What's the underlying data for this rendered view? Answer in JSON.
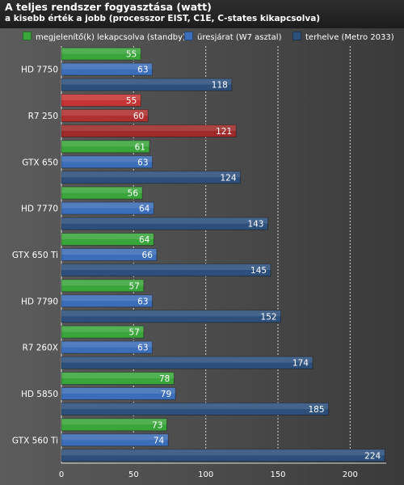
{
  "chart_data": {
    "type": "bar",
    "orientation": "horizontal",
    "title": "A teljes rendszer fogyasztása (watt)",
    "subtitle": "a kisebb érték a jobb (processzor EIST, C1E, C-states kikapcsolva)",
    "categories": [
      "HD 7750",
      "R7 250",
      "GTX 650",
      "HD 7770",
      "GTX 650 Ti",
      "HD 7790",
      "R7 260X",
      "HD 5850",
      "GTX 560 Ti"
    ],
    "series": [
      {
        "name": "megjelenítő(k) lekapcsolva (standby)",
        "color": "#3aa53a",
        "values": [
          55,
          55,
          61,
          56,
          64,
          57,
          57,
          78,
          73
        ]
      },
      {
        "name": "üresjárat (W7 asztal)",
        "color": "#3b6db8",
        "values": [
          63,
          60,
          63,
          64,
          66,
          63,
          63,
          79,
          74
        ]
      },
      {
        "name": "terhelve (Metro 2033)",
        "color": "#2c4f7c",
        "values": [
          118,
          121,
          124,
          143,
          145,
          152,
          174,
          185,
          224
        ]
      }
    ],
    "highlight": {
      "category": "R7 250",
      "colors": [
        "#c53434",
        "#b03030",
        "#9e2a2a"
      ]
    },
    "xlim": [
      0,
      225
    ],
    "xticks": [
      0,
      50,
      100,
      150,
      200
    ],
    "grid": true,
    "legend_position": "top"
  }
}
